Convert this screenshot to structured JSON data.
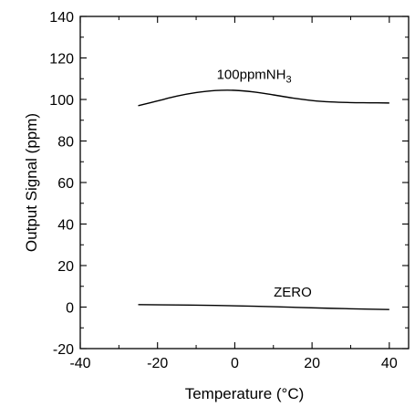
{
  "chart_data": {
    "type": "line",
    "title": "",
    "xlabel": "Temperature (°C)",
    "ylabel": "Output Signal (ppm)",
    "xlim": [
      -40,
      45
    ],
    "ylim": [
      -20,
      140
    ],
    "xticks": [
      -40,
      -20,
      0,
      20,
      40
    ],
    "yticks": [
      -20,
      0,
      20,
      40,
      60,
      80,
      100,
      120,
      140
    ],
    "xtick_labels": [
      "-40",
      "-20",
      "0",
      "20",
      "40"
    ],
    "ytick_labels": [
      "-20",
      "0",
      "20",
      "40",
      "60",
      "80",
      "100",
      "120",
      "140"
    ],
    "grid": false,
    "series": [
      {
        "x": [
          -25,
          -20,
          -15,
          -10,
          -5,
          0,
          5,
          10,
          15,
          20,
          25,
          30,
          35,
          40
        ],
        "y": [
          97,
          99.3,
          101.6,
          103.3,
          104.3,
          104.4,
          103.6,
          102.2,
          100.7,
          99.5,
          98.8,
          98.5,
          98.4,
          98.3
        ]
      },
      {
        "x": [
          -25,
          -15,
          -5,
          5,
          15,
          25,
          35,
          40
        ],
        "y": [
          1.2,
          1.0,
          0.8,
          0.4,
          -0.1,
          -0.6,
          -1.0,
          -1.2
        ]
      }
    ],
    "annotations": [
      {
        "text": "100ppmNH",
        "sub": "3",
        "x": 5,
        "y": 110
      },
      {
        "text": "ZERO",
        "x": 15,
        "y": 5
      }
    ]
  }
}
